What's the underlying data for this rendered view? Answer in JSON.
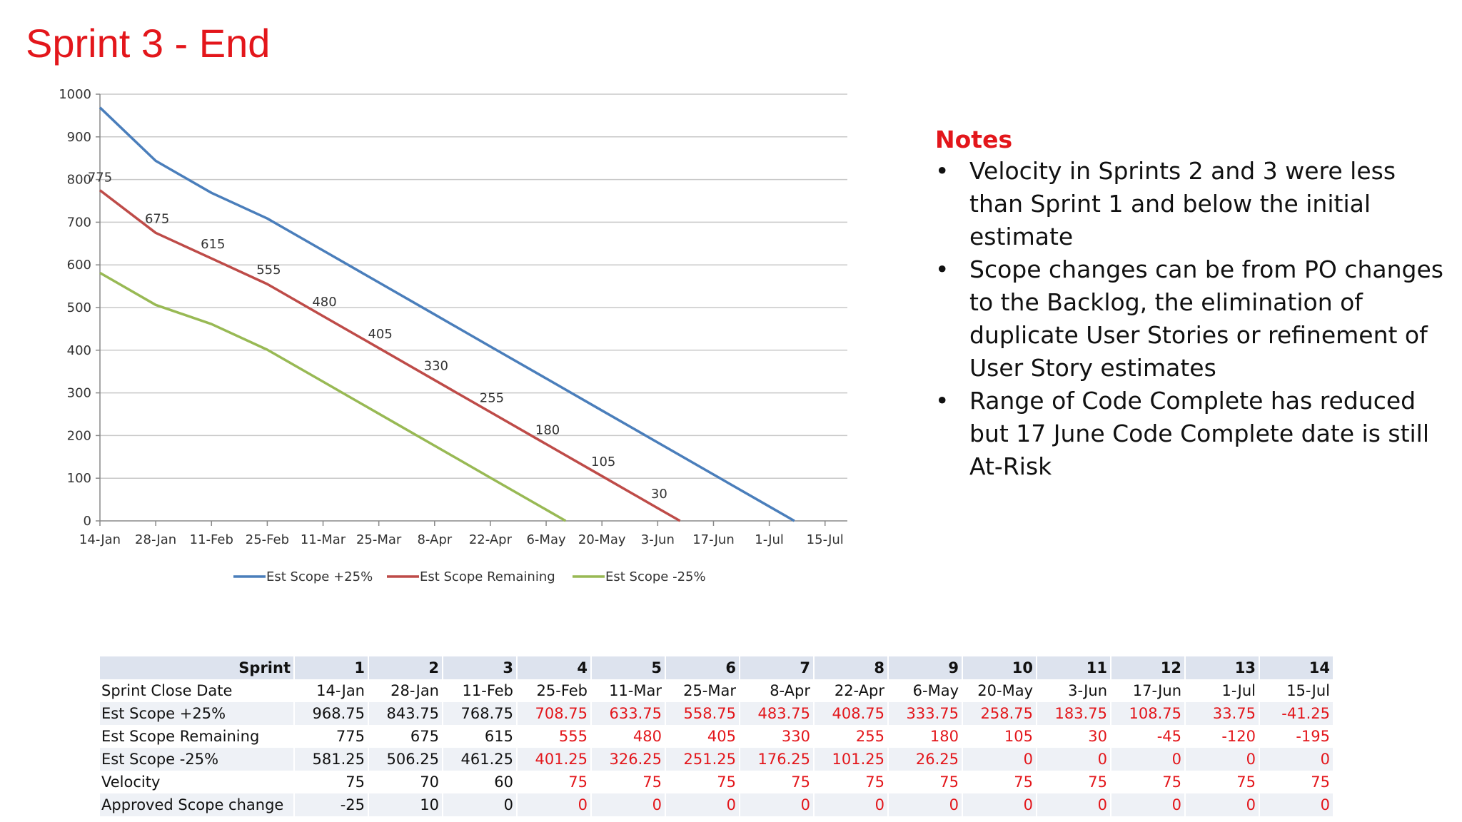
{
  "slide": {
    "title": "Sprint 3 - End"
  },
  "chart_data": {
    "type": "line",
    "categories": [
      "14-Jan",
      "28-Jan",
      "11-Feb",
      "25-Feb",
      "11-Mar",
      "25-Mar",
      "8-Apr",
      "22-Apr",
      "6-May",
      "20-May",
      "3-Jun",
      "17-Jun",
      "1-Jul",
      "15-Jul"
    ],
    "y_ticks": [
      0,
      100,
      200,
      300,
      400,
      500,
      600,
      700,
      800,
      900,
      1000
    ],
    "ylim": [
      0,
      1000
    ],
    "grid": true,
    "legend_position": "bottom",
    "series": [
      {
        "name": "Est Scope +25%",
        "color": "#4a7ebb",
        "points": [
          [
            0,
            968.75
          ],
          [
            1,
            843.75
          ],
          [
            2,
            768.75
          ],
          [
            3,
            708.75
          ],
          [
            4,
            633.75
          ],
          [
            5,
            558.75
          ],
          [
            6,
            483.75
          ],
          [
            7,
            408.75
          ],
          [
            8,
            333.75
          ],
          [
            9,
            258.75
          ],
          [
            10,
            183.75
          ],
          [
            11,
            108.75
          ],
          [
            12,
            33.75
          ],
          [
            12.45,
            0
          ]
        ]
      },
      {
        "name": "Est Scope Remaining",
        "color": "#be4b48",
        "points": [
          [
            0,
            775
          ],
          [
            1,
            675
          ],
          [
            2,
            615
          ],
          [
            3,
            555
          ],
          [
            4,
            480
          ],
          [
            5,
            405
          ],
          [
            6,
            330
          ],
          [
            7,
            255
          ],
          [
            8,
            180
          ],
          [
            9,
            105
          ],
          [
            10,
            30
          ],
          [
            10.4,
            0
          ]
        ]
      },
      {
        "name": "Est Scope -25%",
        "color": "#98b954",
        "points": [
          [
            0,
            581.25
          ],
          [
            1,
            506.25
          ],
          [
            2,
            461.25
          ],
          [
            3,
            401.25
          ],
          [
            4,
            326.25
          ],
          [
            5,
            251.25
          ],
          [
            6,
            176.25
          ],
          [
            7,
            101.25
          ],
          [
            8,
            26.25
          ],
          [
            8.35,
            0
          ]
        ]
      }
    ],
    "data_labels": {
      "series": "Est Scope Remaining",
      "values": [
        "775",
        "675",
        "615",
        "555",
        "480",
        "405",
        "330",
        "255",
        "180",
        "105",
        "30"
      ]
    }
  },
  "notes": {
    "heading": "Notes",
    "items": [
      "Velocity in Sprints 2 and 3 were less than Sprint 1 and below the initial estimate",
      "Scope changes can be from PO changes to the Backlog, the elimination of duplicate User Stories or refinement of User Story estimates",
      "Range of Code Complete has reduced but 17 June Code Complete date is still At-Risk"
    ],
    "bullet": "•"
  },
  "table": {
    "header": {
      "label": "Sprint",
      "cells": [
        "1",
        "2",
        "3",
        "4",
        "5",
        "6",
        "7",
        "8",
        "9",
        "10",
        "11",
        "12",
        "13",
        "14"
      ]
    },
    "rows": [
      {
        "label": "Sprint Close Date",
        "cells": [
          "14-Jan",
          "28-Jan",
          "11-Feb",
          "25-Feb",
          "11-Mar",
          "25-Mar",
          "8-Apr",
          "22-Apr",
          "6-May",
          "20-May",
          "3-Jun",
          "17-Jun",
          "1-Jul",
          "15-Jul"
        ]
      },
      {
        "label": "Est Scope +25%",
        "cells": [
          "968.75",
          "843.75",
          "768.75",
          "708.75",
          "633.75",
          "558.75",
          "483.75",
          "408.75",
          "333.75",
          "258.75",
          "183.75",
          "108.75",
          "33.75",
          "-41.25"
        ]
      },
      {
        "label": "Est Scope Remaining",
        "cells": [
          "775",
          "675",
          "615",
          "555",
          "480",
          "405",
          "330",
          "255",
          "180",
          "105",
          "30",
          "-45",
          "-120",
          "-195"
        ]
      },
      {
        "label": "Est Scope -25%",
        "cells": [
          "581.25",
          "506.25",
          "461.25",
          "401.25",
          "326.25",
          "251.25",
          "176.25",
          "101.25",
          "26.25",
          "0",
          "0",
          "0",
          "0",
          "0"
        ]
      },
      {
        "label": "Velocity",
        "cells": [
          "75",
          "70",
          "60",
          "75",
          "75",
          "75",
          "75",
          "75",
          "75",
          "75",
          "75",
          "75",
          "75",
          "75"
        ]
      },
      {
        "label": "Approved Scope change",
        "cells": [
          "-25",
          "10",
          "0",
          "0",
          "0",
          "0",
          "0",
          "0",
          "0",
          "0",
          "0",
          "0",
          "0",
          "0"
        ]
      }
    ],
    "actual_sprint_count": 3,
    "future_color": "#e3161b"
  }
}
